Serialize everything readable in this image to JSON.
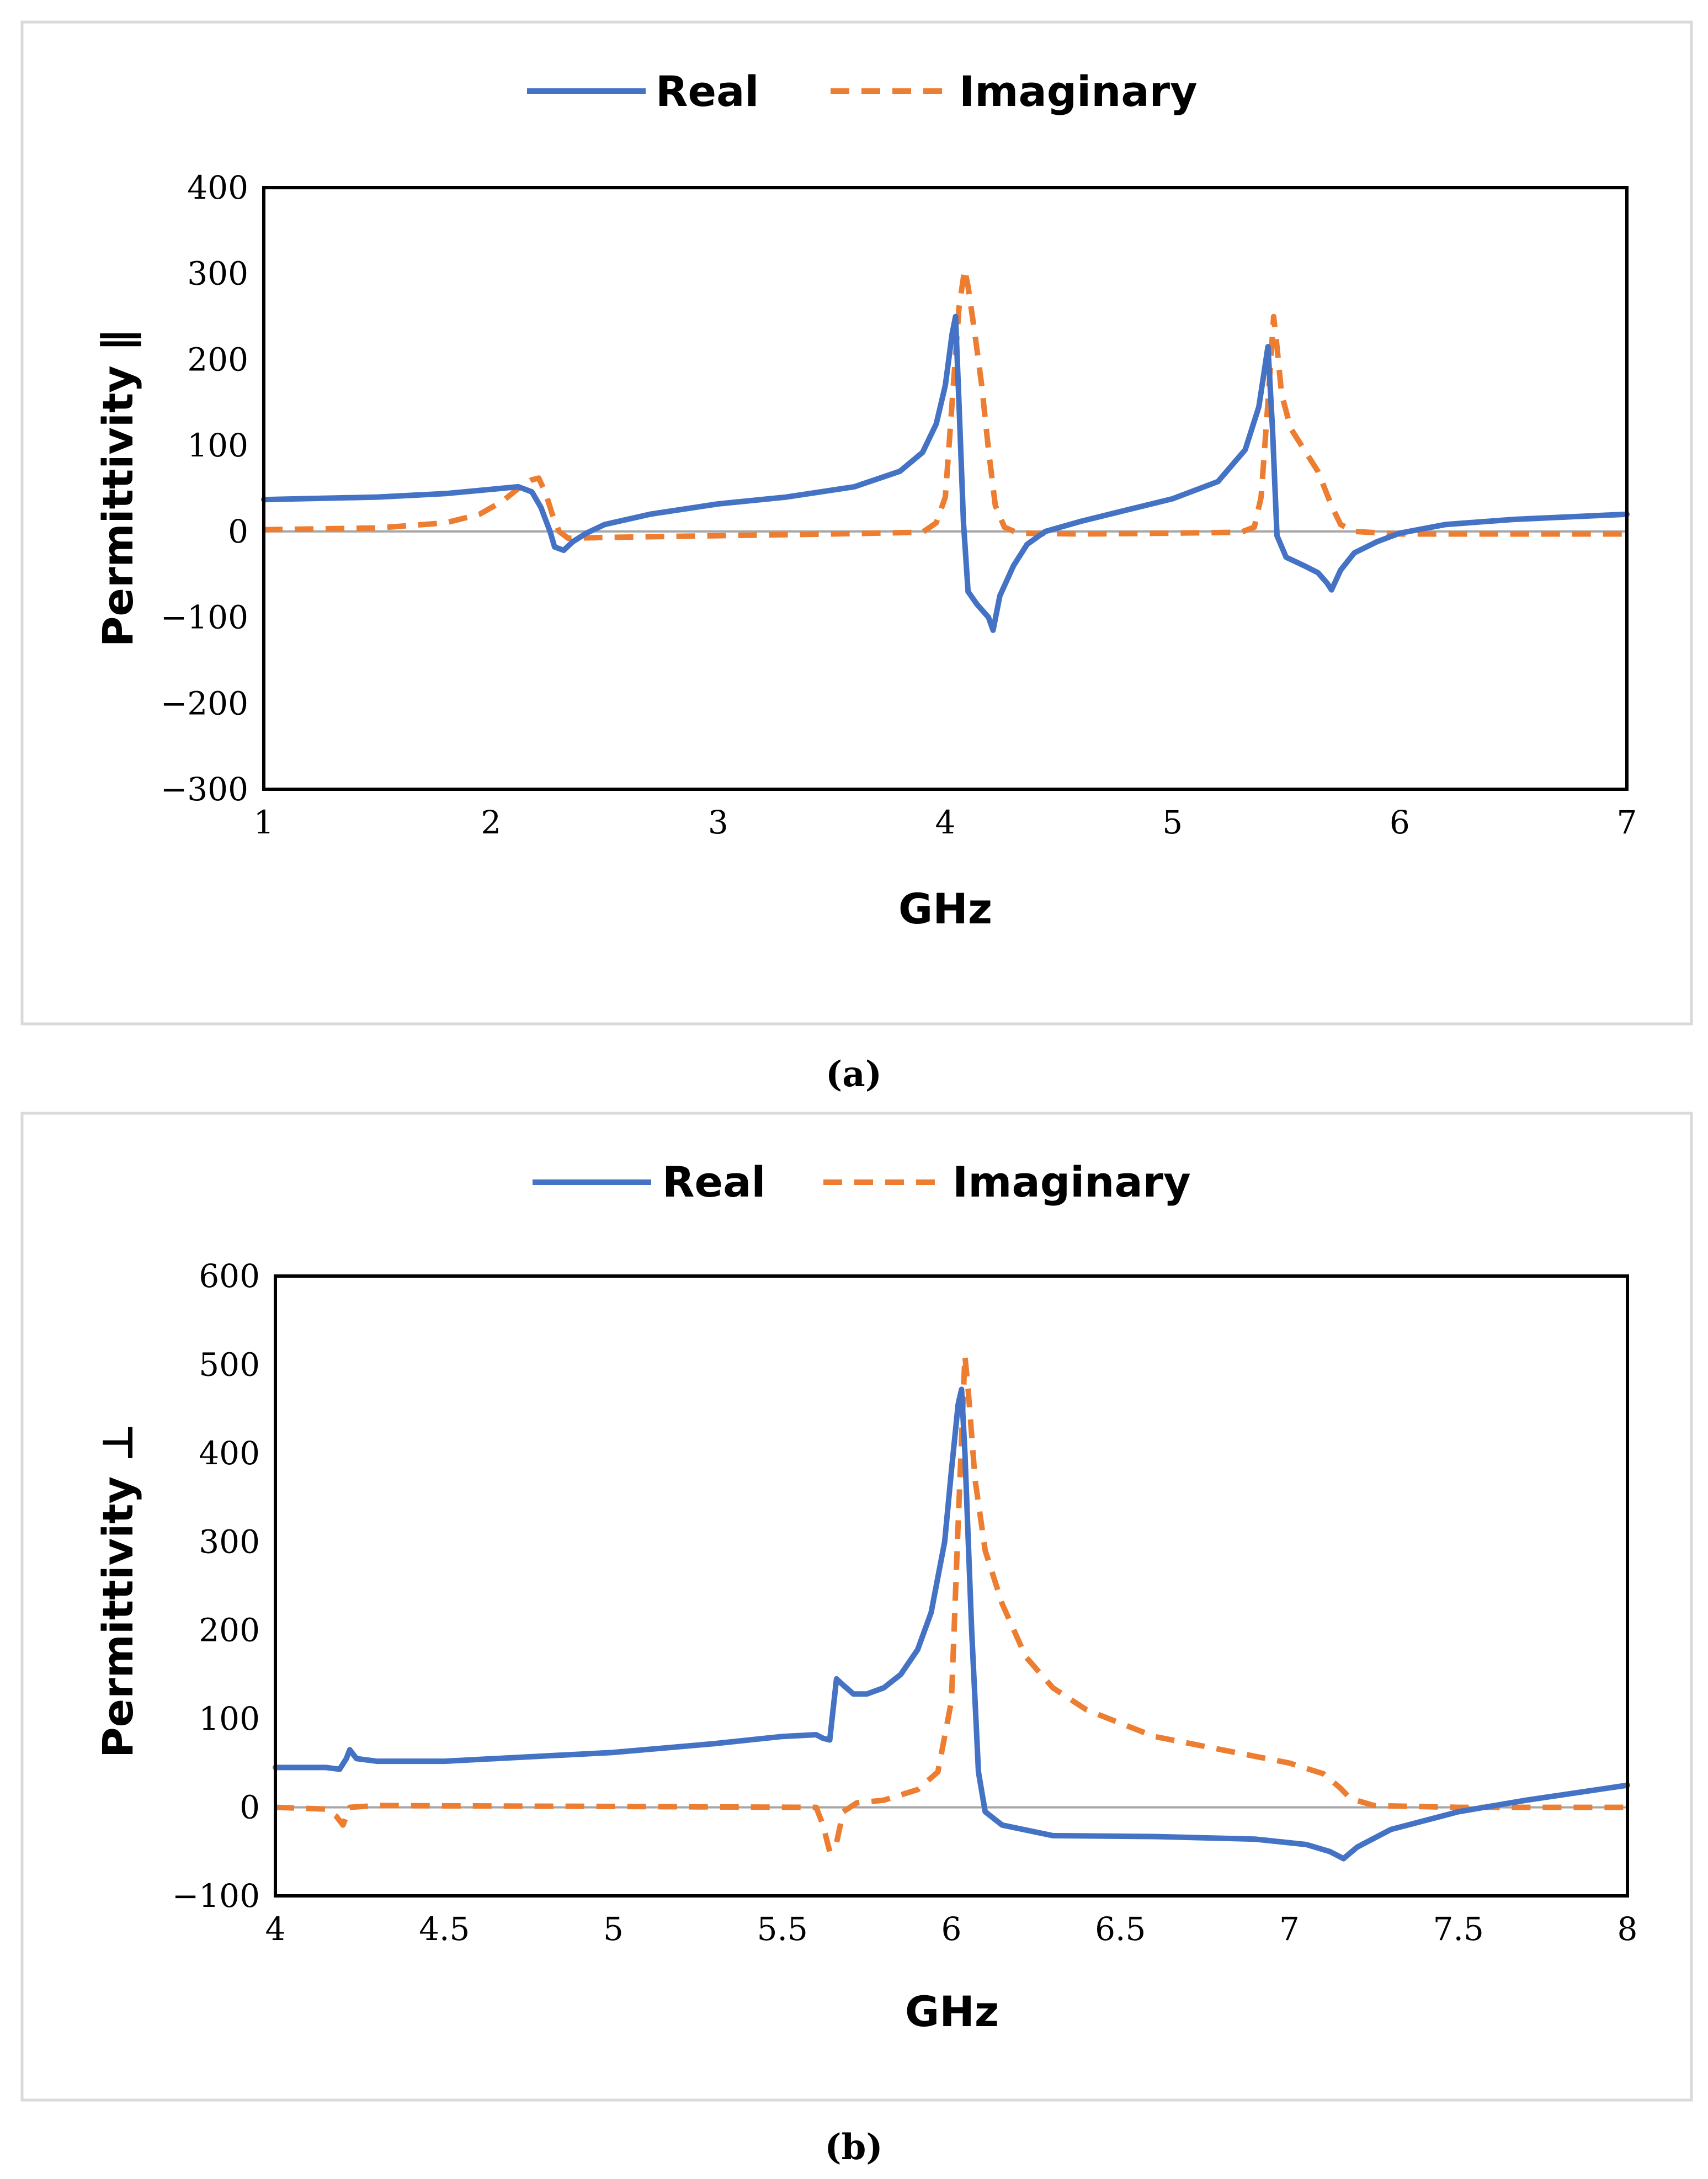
{
  "colors": {
    "real": "#4472C4",
    "imaginary": "#ED7D31",
    "zero_line": "#A6A6A6",
    "frame": "#000000",
    "box": "#D9D9D9"
  },
  "captions": {
    "a": "(a)",
    "b": "(b)"
  },
  "chart_data": [
    {
      "id": "a",
      "type": "line",
      "title": "",
      "xlabel": "GHz",
      "ylabel": "Permittivity ∥",
      "xlim": [
        1,
        7
      ],
      "ylim": [
        -300,
        400
      ],
      "x_ticks": [
        1,
        2,
        3,
        4,
        5,
        6,
        7
      ],
      "x_tick_labels": [
        "1",
        "2",
        "3",
        "4",
        "5",
        "6",
        "7"
      ],
      "y_ticks": [
        400,
        300,
        200,
        100,
        0,
        -100,
        -200,
        -300
      ],
      "y_tick_labels": [
        "400",
        "300",
        "200",
        "100",
        "0",
        "−100",
        "−200",
        "−300"
      ],
      "legend": {
        "position": "top-center",
        "entries": [
          "Real",
          "Imaginary"
        ]
      },
      "series": [
        {
          "name": "Real",
          "style": "solid",
          "points": [
            [
              1.0,
              37
            ],
            [
              1.5,
              40
            ],
            [
              1.8,
              44
            ],
            [
              2.0,
              49
            ],
            [
              2.12,
              52
            ],
            [
              2.18,
              46
            ],
            [
              2.22,
              28
            ],
            [
              2.26,
              0
            ],
            [
              2.28,
              -18
            ],
            [
              2.32,
              -22
            ],
            [
              2.36,
              -12
            ],
            [
              2.42,
              -2
            ],
            [
              2.5,
              8
            ],
            [
              2.7,
              20
            ],
            [
              3.0,
              32
            ],
            [
              3.3,
              40
            ],
            [
              3.6,
              52
            ],
            [
              3.8,
              70
            ],
            [
              3.9,
              92
            ],
            [
              3.96,
              125
            ],
            [
              4.0,
              170
            ],
            [
              4.03,
              230
            ],
            [
              4.045,
              250
            ],
            [
              4.06,
              150
            ],
            [
              4.08,
              10
            ],
            [
              4.1,
              -70
            ],
            [
              4.14,
              -85
            ],
            [
              4.19,
              -100
            ],
            [
              4.21,
              -115
            ],
            [
              4.24,
              -75
            ],
            [
              4.3,
              -40
            ],
            [
              4.36,
              -15
            ],
            [
              4.44,
              0
            ],
            [
              4.6,
              12
            ],
            [
              4.8,
              25
            ],
            [
              5.0,
              38
            ],
            [
              5.2,
              58
            ],
            [
              5.32,
              95
            ],
            [
              5.38,
              145
            ],
            [
              5.42,
              215
            ],
            [
              5.44,
              120
            ],
            [
              5.46,
              -5
            ],
            [
              5.5,
              -30
            ],
            [
              5.58,
              -40
            ],
            [
              5.64,
              -48
            ],
            [
              5.68,
              -60
            ],
            [
              5.7,
              -68
            ],
            [
              5.74,
              -45
            ],
            [
              5.8,
              -25
            ],
            [
              5.9,
              -12
            ],
            [
              6.0,
              -2
            ],
            [
              6.2,
              8
            ],
            [
              6.5,
              14
            ],
            [
              7.0,
              20
            ]
          ]
        },
        {
          "name": "Imaginary",
          "style": "dashed",
          "points": [
            [
              1.0,
              2
            ],
            [
              1.5,
              4
            ],
            [
              1.8,
              10
            ],
            [
              1.95,
              20
            ],
            [
              2.05,
              35
            ],
            [
              2.12,
              50
            ],
            [
              2.18,
              60
            ],
            [
              2.21,
              62
            ],
            [
              2.24,
              45
            ],
            [
              2.27,
              20
            ],
            [
              2.3,
              0
            ],
            [
              2.34,
              -8
            ],
            [
              2.5,
              -7
            ],
            [
              3.0,
              -5
            ],
            [
              3.5,
              -3
            ],
            [
              3.9,
              -1
            ],
            [
              3.96,
              10
            ],
            [
              4.0,
              40
            ],
            [
              4.03,
              150
            ],
            [
              4.06,
              260
            ],
            [
              4.085,
              305
            ],
            [
              4.1,
              285
            ],
            [
              4.13,
              230
            ],
            [
              4.16,
              170
            ],
            [
              4.19,
              95
            ],
            [
              4.22,
              30
            ],
            [
              4.26,
              5
            ],
            [
              4.32,
              -2
            ],
            [
              4.6,
              -3
            ],
            [
              5.0,
              -2
            ],
            [
              5.3,
              -1
            ],
            [
              5.36,
              5
            ],
            [
              5.39,
              40
            ],
            [
              5.42,
              150
            ],
            [
              5.445,
              250
            ],
            [
              5.46,
              215
            ],
            [
              5.48,
              160
            ],
            [
              5.52,
              120
            ],
            [
              5.58,
              95
            ],
            [
              5.64,
              70
            ],
            [
              5.7,
              30
            ],
            [
              5.74,
              8
            ],
            [
              5.8,
              0
            ],
            [
              6.0,
              -3
            ],
            [
              6.5,
              -3
            ],
            [
              7.0,
              -3
            ]
          ]
        }
      ]
    },
    {
      "id": "b",
      "type": "line",
      "title": "",
      "xlabel": "GHz",
      "ylabel": "Permittivity ⊥",
      "xlim": [
        4,
        8
      ],
      "ylim": [
        -100,
        600
      ],
      "x_ticks": [
        4,
        4.5,
        5,
        5.5,
        6,
        6.5,
        7,
        7.5,
        8
      ],
      "x_tick_labels": [
        "4",
        "4.5",
        "5",
        "5.5",
        "6",
        "6.5",
        "7",
        "7.5",
        "8"
      ],
      "y_ticks": [
        600,
        500,
        400,
        300,
        200,
        100,
        0,
        -100
      ],
      "y_tick_labels": [
        "600",
        "500",
        "400",
        "300",
        "200",
        "100",
        "0",
        "−100"
      ],
      "legend": {
        "position": "top-center",
        "entries": [
          "Real",
          "Imaginary"
        ]
      },
      "series": [
        {
          "name": "Real",
          "style": "solid",
          "points": [
            [
              4.0,
              45
            ],
            [
              4.15,
              45
            ],
            [
              4.19,
              43
            ],
            [
              4.21,
              55
            ],
            [
              4.22,
              65
            ],
            [
              4.24,
              55
            ],
            [
              4.3,
              52
            ],
            [
              4.5,
              52
            ],
            [
              5.0,
              62
            ],
            [
              5.3,
              72
            ],
            [
              5.5,
              80
            ],
            [
              5.6,
              82
            ],
            [
              5.62,
              78
            ],
            [
              5.64,
              76
            ],
            [
              5.66,
              145
            ],
            [
              5.68,
              138
            ],
            [
              5.71,
              128
            ],
            [
              5.75,
              128
            ],
            [
              5.8,
              135
            ],
            [
              5.85,
              150
            ],
            [
              5.9,
              178
            ],
            [
              5.94,
              220
            ],
            [
              5.98,
              300
            ],
            [
              6.0,
              380
            ],
            [
              6.02,
              455
            ],
            [
              6.03,
              472
            ],
            [
              6.04,
              400
            ],
            [
              6.06,
              200
            ],
            [
              6.08,
              40
            ],
            [
              6.1,
              -5
            ],
            [
              6.15,
              -20
            ],
            [
              6.3,
              -32
            ],
            [
              6.6,
              -33
            ],
            [
              6.9,
              -36
            ],
            [
              7.05,
              -42
            ],
            [
              7.12,
              -50
            ],
            [
              7.16,
              -58
            ],
            [
              7.2,
              -45
            ],
            [
              7.3,
              -25
            ],
            [
              7.5,
              -5
            ],
            [
              7.7,
              8
            ],
            [
              8.0,
              25
            ]
          ]
        },
        {
          "name": "Imaginary",
          "style": "dashed",
          "points": [
            [
              4.0,
              0
            ],
            [
              4.15,
              -2
            ],
            [
              4.18,
              -10
            ],
            [
              4.2,
              -20
            ],
            [
              4.22,
              0
            ],
            [
              4.3,
              2
            ],
            [
              5.0,
              1
            ],
            [
              5.6,
              0
            ],
            [
              5.62,
              -20
            ],
            [
              5.64,
              -50
            ],
            [
              5.66,
              -40
            ],
            [
              5.68,
              -5
            ],
            [
              5.72,
              5
            ],
            [
              5.8,
              8
            ],
            [
              5.9,
              20
            ],
            [
              5.96,
              40
            ],
            [
              6.0,
              120
            ],
            [
              6.02,
              320
            ],
            [
              6.04,
              510
            ],
            [
              6.05,
              470
            ],
            [
              6.07,
              370
            ],
            [
              6.1,
              290
            ],
            [
              6.15,
              230
            ],
            [
              6.22,
              170
            ],
            [
              6.3,
              135
            ],
            [
              6.4,
              110
            ],
            [
              6.5,
              95
            ],
            [
              6.6,
              80
            ],
            [
              6.8,
              65
            ],
            [
              7.0,
              50
            ],
            [
              7.1,
              38
            ],
            [
              7.15,
              22
            ],
            [
              7.18,
              10
            ],
            [
              7.25,
              2
            ],
            [
              7.5,
              0
            ],
            [
              8.0,
              0
            ]
          ]
        }
      ]
    }
  ]
}
